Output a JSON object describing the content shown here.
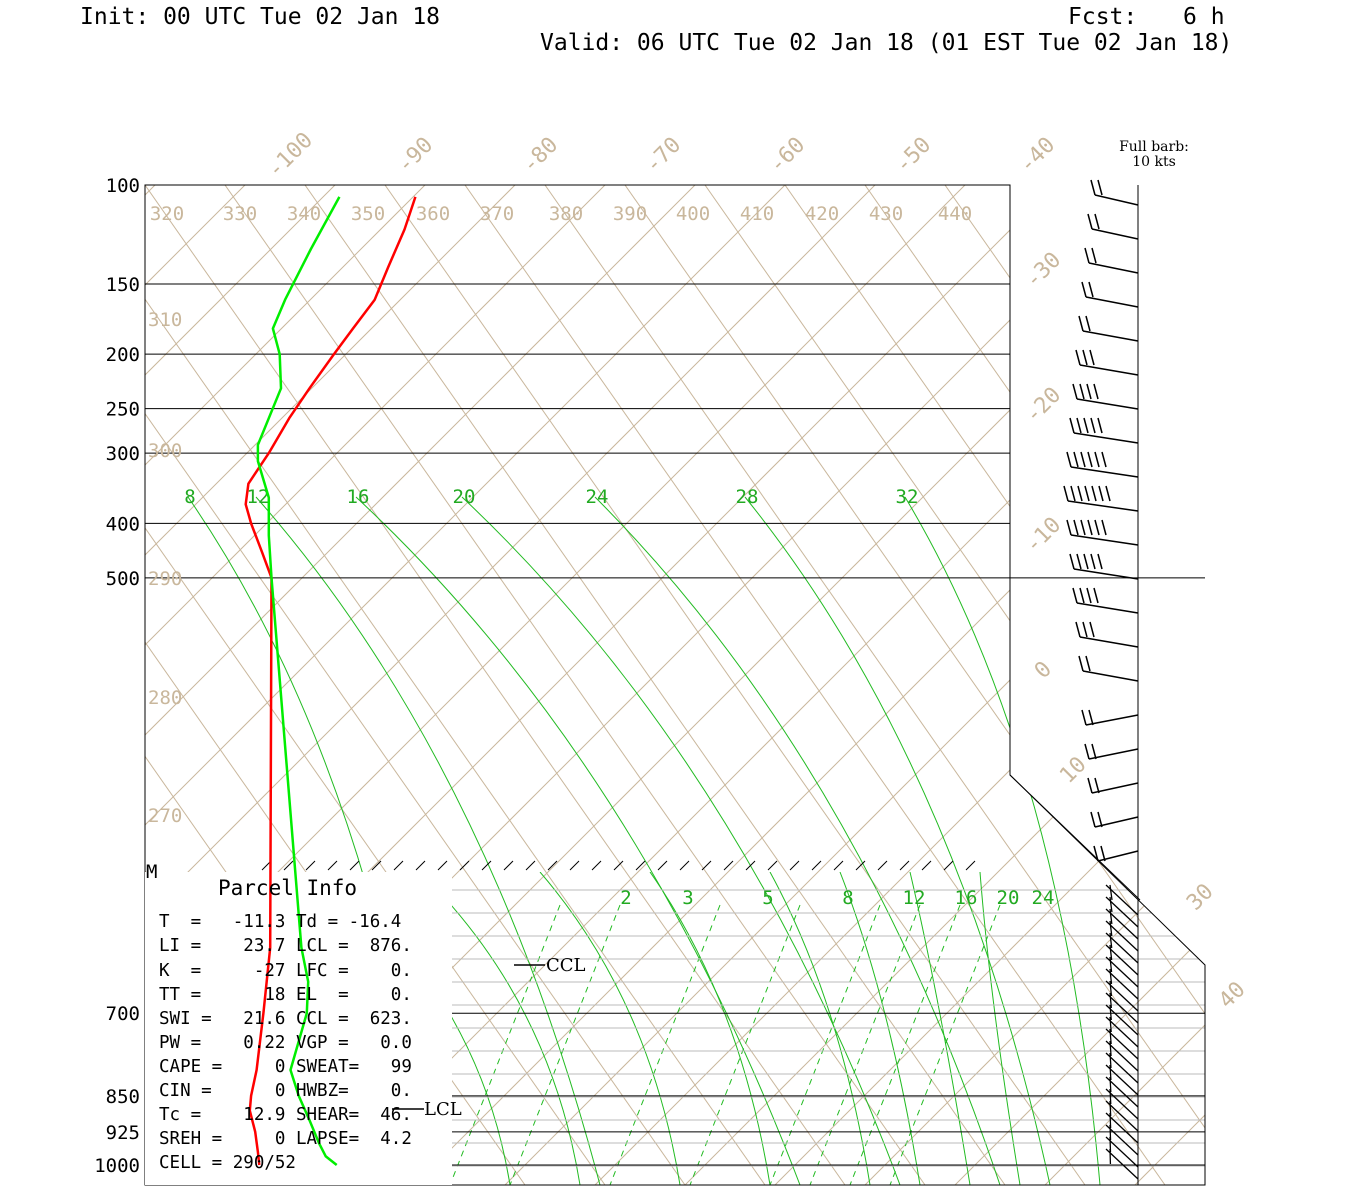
{
  "header": {
    "init": "Init: 00 UTC Tue 02 Jan 18",
    "fcst_label": "Fcst:",
    "fcst_value": "6 h",
    "valid": "Valid: 06 UTC Tue 02 Jan 18 (01 EST Tue 02 Jan 18)"
  },
  "barb_legend": {
    "line1": "Full barb:",
    "line2": "10 kts"
  },
  "parcel_info": {
    "title": "Parcel Info",
    "rows": [
      "T  =   -11.3 Td = -16.4",
      "LI =    23.7 LCL =  876.",
      "K  =     -27 LFC =    0.",
      "TT =      18 EL  =    0.",
      "SWI =   21.6 CCL =  623.",
      "PW =    0.22 VGP =   0.0",
      "CAPE =     0 SWEAT=   99",
      "CIN =      0 HWBZ=    0.",
      "Tc =    12.9 SHEAR=  46.",
      "SREH =     0 LAPSE=  4.2",
      "CELL = 290/52"
    ]
  },
  "chart_data": {
    "type": "line",
    "title": "",
    "ylabel": "",
    "y_axis": "pressure (hPa), log scale, inverted",
    "pressure_ticks": [
      "100",
      "150",
      "200",
      "250",
      "300",
      "400",
      "500",
      "700",
      "850",
      "925",
      "1000"
    ],
    "pressure_values": [
      100,
      150,
      200,
      250,
      300,
      400,
      500,
      700,
      850,
      925,
      1000
    ],
    "upper_isotherm_labels": [
      "-100",
      "-90",
      "-80",
      "-70",
      "-60",
      "-50",
      "-40"
    ],
    "right_isotherm_labels": [
      "-30",
      "-20",
      "-10",
      "0",
      "10",
      "30",
      "40"
    ],
    "theta_labels_top": [
      "320",
      "330",
      "340",
      "350",
      "360",
      "370",
      "380",
      "390",
      "400",
      "410",
      "420",
      "430",
      "440"
    ],
    "theta_labels_left": [
      "310",
      "300",
      "290",
      "280",
      "270"
    ],
    "mixing_ratio_labels_upper": [
      "8",
      "12",
      "16",
      "20",
      "24",
      "28",
      "32"
    ],
    "mixing_ratio_labels_lower": [
      "2",
      "3",
      "5",
      "8",
      "12",
      "16",
      "20",
      "24"
    ],
    "annotations": {
      "ccl": "CCL",
      "lcl": "LCL",
      "m_mark": "M"
    },
    "series": [
      {
        "color": "#ff0000",
        "values": [
          [
            105,
            418
          ],
          [
            120,
            410
          ],
          [
            140,
            398
          ],
          [
            160,
            388
          ],
          [
            180,
            372
          ],
          [
            200,
            358
          ],
          [
            230,
            340
          ],
          [
            260,
            325
          ],
          [
            300,
            310
          ],
          [
            340,
            295
          ],
          [
            370,
            293
          ],
          [
            400,
            297
          ],
          [
            450,
            305
          ],
          [
            500,
            312
          ],
          [
            600,
            311
          ],
          [
            700,
            306
          ],
          [
            800,
            301
          ],
          [
            850,
            297
          ],
          [
            880,
            296
          ],
          [
            925,
            300
          ],
          [
            970,
            302
          ],
          [
            1000,
            303
          ]
        ]
      },
      {
        "color": "#00ee00",
        "values": [
          [
            105,
            362
          ],
          [
            130,
            341
          ],
          [
            160,
            322
          ],
          [
            180,
            313
          ],
          [
            200,
            318
          ],
          [
            230,
            319
          ],
          [
            260,
            310
          ],
          [
            290,
            302
          ],
          [
            310,
            302
          ],
          [
            360,
            310
          ],
          [
            420,
            310
          ],
          [
            500,
            312
          ],
          [
            600,
            334
          ],
          [
            650,
            339
          ],
          [
            700,
            338
          ],
          [
            800,
            326
          ],
          [
            850,
            332
          ],
          [
            900,
            340
          ],
          [
            950,
            347
          ],
          [
            980,
            352
          ],
          [
            1000,
            360
          ]
        ]
      }
    ],
    "colors": {
      "temperature": "#ff0000",
      "dewpoint": "#00ee00",
      "isobar": "#000000",
      "dry_adiabat": "#c9b79c",
      "isotherm": "#c9b79c",
      "mixing_ratio": "#00aa00"
    },
    "wind_barbs_note": "wind barbs column at right, Full barb = 10 kts",
    "grid": true
  }
}
